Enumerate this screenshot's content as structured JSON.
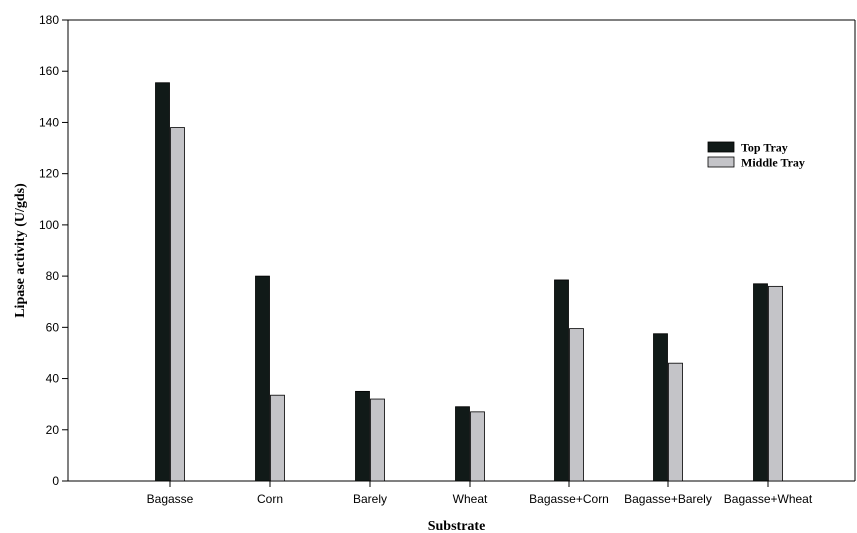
{
  "chart_data": {
    "type": "bar",
    "title": "",
    "xlabel": "Substrate",
    "ylabel": "Lipase activity (U/gds)",
    "ylim": [
      0,
      180
    ],
    "yticks": [
      0,
      20,
      40,
      60,
      80,
      100,
      120,
      140,
      160,
      180
    ],
    "grid": false,
    "legend_position": "right",
    "categories": [
      "Bagasse",
      "Corn",
      "Barely",
      "Wheat",
      "Bagasse+Corn",
      "Bagasse+Barely",
      "Bagasse+Wheat"
    ],
    "series": [
      {
        "name": "Top Tray",
        "color": "#111a18",
        "values": [
          155.5,
          80,
          35,
          29,
          78.5,
          57.5,
          77
        ]
      },
      {
        "name": "Middle Tray",
        "color": "#c4c4c8",
        "values": [
          138,
          33.5,
          32,
          27,
          59.5,
          46,
          76
        ]
      }
    ]
  }
}
